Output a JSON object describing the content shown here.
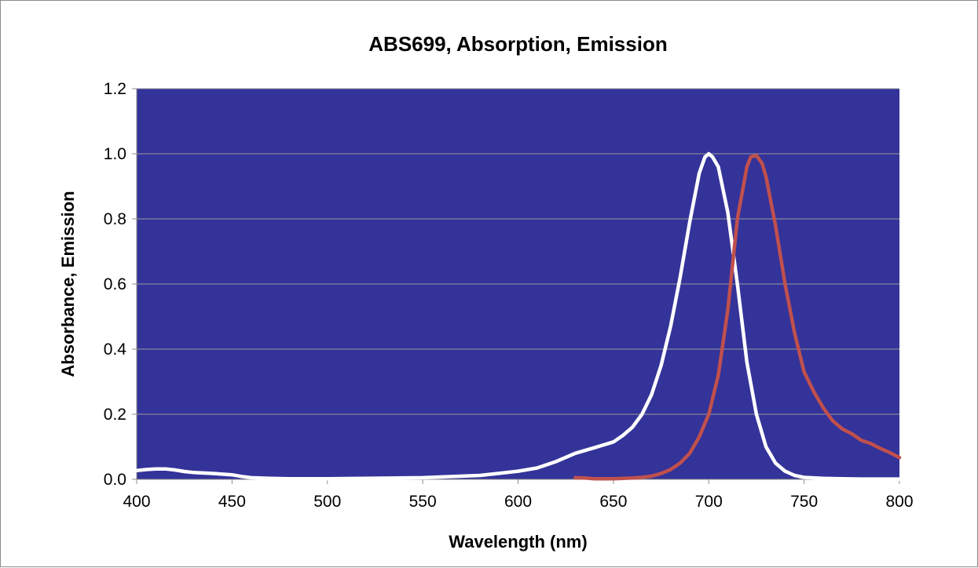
{
  "chart_data": {
    "type": "line",
    "title": "ABS699, Absorption, Emission",
    "xlabel": "Wavelength (nm)",
    "ylabel": "Absorbance, Emission",
    "xlim": [
      400,
      800
    ],
    "ylim": [
      0,
      1.2
    ],
    "x_ticks": [
      "400",
      "450",
      "500",
      "550",
      "600",
      "650",
      "700",
      "750",
      "800"
    ],
    "y_ticks": [
      "0.0",
      "0.2",
      "0.4",
      "0.6",
      "0.8",
      "1.0",
      "1.2"
    ],
    "grid": "horizontal",
    "legend": "none",
    "plot_background": "#333399",
    "series": [
      {
        "color": "#ffffff",
        "x": [
          400,
          405,
          410,
          415,
          420,
          425,
          430,
          440,
          450,
          455,
          460,
          470,
          480,
          500,
          550,
          580,
          600,
          610,
          620,
          630,
          640,
          650,
          655,
          660,
          665,
          670,
          675,
          680,
          685,
          690,
          695,
          698,
          700,
          702,
          705,
          710,
          715,
          720,
          725,
          730,
          735,
          740,
          745,
          750,
          760,
          770,
          780,
          800
        ],
        "y": [
          0.027,
          0.03,
          0.032,
          0.032,
          0.029,
          0.024,
          0.021,
          0.018,
          0.014,
          0.009,
          0.005,
          0.003,
          0.002,
          0.002,
          0.005,
          0.012,
          0.025,
          0.035,
          0.055,
          0.08,
          0.097,
          0.115,
          0.135,
          0.16,
          0.2,
          0.26,
          0.35,
          0.47,
          0.62,
          0.79,
          0.94,
          0.99,
          1.0,
          0.99,
          0.96,
          0.82,
          0.6,
          0.36,
          0.2,
          0.1,
          0.05,
          0.025,
          0.012,
          0.006,
          0.003,
          0.002,
          0.001,
          0.001
        ]
      },
      {
        "color": "#c0504d",
        "x": [
          630,
          635,
          640,
          650,
          660,
          665,
          670,
          675,
          680,
          685,
          690,
          695,
          700,
          705,
          710,
          715,
          720,
          722,
          725,
          728,
          730,
          735,
          740,
          745,
          750,
          755,
          760,
          765,
          770,
          775,
          780,
          785,
          790,
          795,
          800
        ],
        "y": [
          0.005,
          0.004,
          0.002,
          0.002,
          0.004,
          0.006,
          0.01,
          0.018,
          0.03,
          0.05,
          0.08,
          0.13,
          0.2,
          0.32,
          0.52,
          0.8,
          0.96,
          0.99,
          0.995,
          0.97,
          0.93,
          0.78,
          0.6,
          0.45,
          0.33,
          0.27,
          0.22,
          0.18,
          0.155,
          0.14,
          0.12,
          0.11,
          0.095,
          0.082,
          0.067
        ]
      }
    ]
  }
}
